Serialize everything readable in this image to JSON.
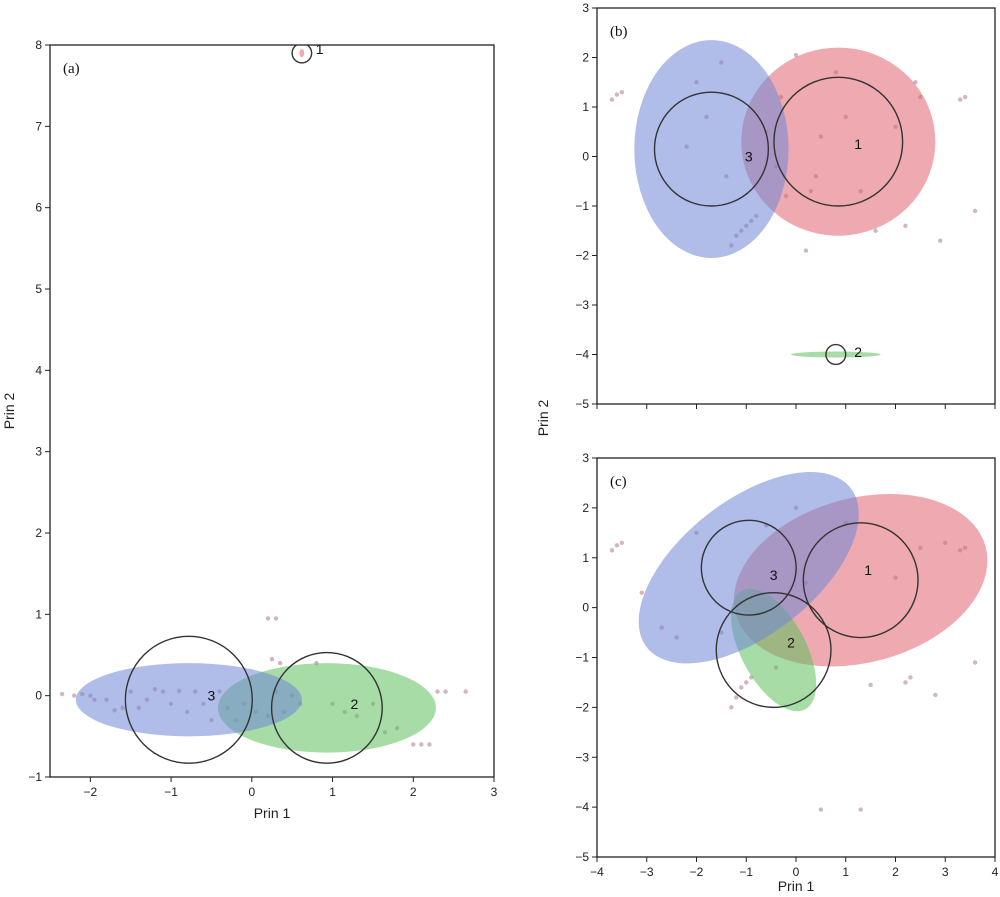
{
  "colors": {
    "cluster_red": "#e06470",
    "cluster_blue": "#6f86d6",
    "cluster_green": "#5fbf5f",
    "teal_overlap": "#4f9fb0",
    "outlier_gray": "#c9a9b2"
  },
  "chart_data": [
    {
      "id": "a",
      "type": "scatter",
      "panel_label": "(a)",
      "xlabel": "Prin 1",
      "ylabel": "Prin 2",
      "xlim": [
        -2.5,
        3
      ],
      "ylim": [
        -1,
        8
      ],
      "xticks": [
        -2,
        -1,
        0,
        1,
        2,
        3
      ],
      "yticks": [
        -1,
        0,
        1,
        2,
        3,
        4,
        5,
        6,
        7,
        8
      ],
      "clusters": [
        {
          "label": "1",
          "color": "cluster_red",
          "center": [
            0.62,
            7.9
          ],
          "ellipse": {
            "rx": 0.03,
            "ry": 0.05,
            "angle": 0
          },
          "circle_r": 0.12,
          "label_at": [
            0.84,
            7.95
          ]
        },
        {
          "label": "2",
          "color": "cluster_green",
          "center": [
            0.93,
            -0.15
          ],
          "ellipse": {
            "rx": 1.35,
            "ry": 0.55,
            "angle": 0
          },
          "circle_r": 0.68,
          "label_at": [
            1.27,
            -0.1
          ]
        },
        {
          "label": "3",
          "color": "cluster_blue",
          "center": [
            -0.78,
            -0.05
          ],
          "ellipse": {
            "rx": 1.4,
            "ry": 0.45,
            "angle": 0
          },
          "circle_r": 0.78,
          "label_at": [
            -0.5,
            0.0
          ]
        }
      ],
      "points": [
        [
          -2.35,
          0.02
        ],
        [
          -2.2,
          0.0
        ],
        [
          -2.1,
          0.02
        ],
        [
          -2.0,
          0.0
        ],
        [
          -1.95,
          -0.05
        ],
        [
          -1.8,
          -0.05
        ],
        [
          -1.7,
          -0.18
        ],
        [
          -1.6,
          -0.15
        ],
        [
          -1.5,
          0.05
        ],
        [
          -1.4,
          -0.15
        ],
        [
          -1.3,
          -0.05
        ],
        [
          -1.2,
          0.08
        ],
        [
          -1.1,
          0.05
        ],
        [
          -1.0,
          -0.1
        ],
        [
          -0.9,
          0.06
        ],
        [
          -0.8,
          -0.2
        ],
        [
          -0.7,
          0.05
        ],
        [
          -0.6,
          -0.1
        ],
        [
          -0.5,
          -0.3
        ],
        [
          -0.4,
          0.05
        ],
        [
          -0.3,
          -0.15
        ],
        [
          -0.2,
          -0.3
        ],
        [
          -0.1,
          -0.1
        ],
        [
          0.05,
          -0.2
        ],
        [
          0.2,
          -0.25
        ],
        [
          0.3,
          0.05
        ],
        [
          0.4,
          -0.2
        ],
        [
          0.5,
          0.0
        ],
        [
          0.6,
          -0.1
        ],
        [
          0.8,
          0.4
        ],
        [
          1.0,
          -0.1
        ],
        [
          1.15,
          -0.2
        ],
        [
          1.3,
          -0.25
        ],
        [
          1.5,
          -0.1
        ],
        [
          1.65,
          -0.45
        ],
        [
          1.8,
          -0.4
        ],
        [
          2.0,
          -0.6
        ],
        [
          2.1,
          -0.6
        ],
        [
          2.2,
          -0.6
        ],
        [
          2.3,
          0.05
        ],
        [
          2.4,
          0.05
        ],
        [
          2.65,
          0.05
        ],
        [
          0.2,
          0.95
        ],
        [
          0.3,
          0.95
        ],
        [
          0.25,
          0.45
        ],
        [
          0.35,
          0.4
        ]
      ],
      "grid": false
    },
    {
      "id": "b",
      "type": "scatter",
      "panel_label": "(b)",
      "xlabel": "",
      "ylabel": "Prin 2",
      "xlim": [
        -4,
        4
      ],
      "ylim": [
        -5,
        3
      ],
      "xticks": [
        -4,
        -3,
        -2,
        -1,
        0,
        1,
        2,
        3,
        4
      ],
      "yticks": [
        -5,
        -4,
        -3,
        -2,
        -1,
        0,
        1,
        2,
        3
      ],
      "show_xtick_labels": false,
      "clusters": [
        {
          "label": "1",
          "color": "cluster_red",
          "center": [
            0.85,
            0.3
          ],
          "ellipse": {
            "rx": 1.95,
            "ry": 1.9,
            "angle": 0
          },
          "circle_r": 1.3,
          "label_at": [
            1.25,
            0.25
          ]
        },
        {
          "label": "2",
          "color": "cluster_green",
          "center": [
            0.8,
            -4.0
          ],
          "ellipse": {
            "rx": 0.9,
            "ry": 0.06,
            "angle": 0
          },
          "circle_r": 0.2,
          "label_at": [
            1.25,
            -3.95
          ]
        },
        {
          "label": "3",
          "color": "cluster_blue",
          "center": [
            -1.7,
            0.15
          ],
          "ellipse": {
            "rx": 1.55,
            "ry": 2.2,
            "angle": 0
          },
          "circle_r": 1.15,
          "label_at": [
            -0.95,
            0.0
          ]
        }
      ],
      "points": [
        [
          -3.7,
          1.15
        ],
        [
          -3.6,
          1.25
        ],
        [
          -3.5,
          1.3
        ],
        [
          -2.2,
          0.2
        ],
        [
          -2.0,
          1.5
        ],
        [
          -1.8,
          0.8
        ],
        [
          -1.5,
          1.9
        ],
        [
          -1.4,
          -0.4
        ],
        [
          -1.3,
          -1.8
        ],
        [
          -1.2,
          -1.6
        ],
        [
          -1.1,
          -1.5
        ],
        [
          -1.0,
          -1.4
        ],
        [
          -0.9,
          -1.3
        ],
        [
          -0.8,
          -1.2
        ],
        [
          -0.6,
          0.5
        ],
        [
          -0.4,
          -0.2
        ],
        [
          -0.3,
          1.2
        ],
        [
          -0.2,
          -0.8
        ],
        [
          0.0,
          2.05
        ],
        [
          0.2,
          -1.9
        ],
        [
          0.3,
          -0.7
        ],
        [
          0.5,
          0.4
        ],
        [
          0.8,
          1.7
        ],
        [
          1.0,
          0.8
        ],
        [
          1.3,
          -0.7
        ],
        [
          1.6,
          -1.5
        ],
        [
          2.0,
          0.6
        ],
        [
          2.2,
          -1.4
        ],
        [
          2.5,
          1.2
        ],
        [
          2.9,
          -1.7
        ],
        [
          3.3,
          1.15
        ],
        [
          3.4,
          1.2
        ],
        [
          3.6,
          -1.1
        ],
        [
          2.4,
          1.5
        ],
        [
          0.4,
          -0.4
        ]
      ],
      "grid": false
    },
    {
      "id": "c",
      "type": "scatter",
      "panel_label": "(c)",
      "xlabel": "Prin 1",
      "ylabel": "",
      "xlim": [
        -4,
        4
      ],
      "ylim": [
        -5,
        3
      ],
      "xticks": [
        -4,
        -3,
        -2,
        -1,
        0,
        1,
        2,
        3,
        4
      ],
      "yticks": [
        -5,
        -4,
        -3,
        -2,
        -1,
        0,
        1,
        2,
        3
      ],
      "clusters": [
        {
          "label": "1",
          "color": "cluster_red",
          "center": [
            1.3,
            0.55
          ],
          "ellipse": {
            "rx": 2.6,
            "ry": 1.65,
            "angle": -15
          },
          "circle_r": 1.15,
          "label_at": [
            1.45,
            0.75
          ]
        },
        {
          "label": "2",
          "color": "cluster_green",
          "center": [
            -0.45,
            -0.85
          ],
          "ellipse": {
            "rx": 1.35,
            "ry": 0.65,
            "angle": 62
          },
          "circle_r": 1.15,
          "label_at": [
            -0.1,
            -0.7
          ]
        },
        {
          "label": "3",
          "color": "cluster_blue",
          "center": [
            -0.95,
            0.8
          ],
          "ellipse": {
            "rx": 2.6,
            "ry": 1.35,
            "angle": -38
          },
          "circle_r": 0.95,
          "label_at": [
            -0.45,
            0.65
          ]
        }
      ],
      "points": [
        [
          -3.7,
          1.15
        ],
        [
          -3.6,
          1.25
        ],
        [
          -3.5,
          1.3
        ],
        [
          -3.1,
          0.3
        ],
        [
          -2.7,
          -0.4
        ],
        [
          -2.4,
          -0.6
        ],
        [
          -2.0,
          1.5
        ],
        [
          -1.5,
          -0.5
        ],
        [
          -1.3,
          -2.0
        ],
        [
          -1.2,
          -1.8
        ],
        [
          -1.1,
          -1.6
        ],
        [
          -1.0,
          -1.5
        ],
        [
          -0.9,
          -1.4
        ],
        [
          -0.6,
          1.65
        ],
        [
          -0.4,
          -1.2
        ],
        [
          0.0,
          2.0
        ],
        [
          0.2,
          0.5
        ],
        [
          0.5,
          -4.05
        ],
        [
          1.0,
          1.7
        ],
        [
          1.3,
          -4.05
        ],
        [
          1.5,
          -1.55
        ],
        [
          2.0,
          0.6
        ],
        [
          2.3,
          -1.4
        ],
        [
          2.5,
          1.2
        ],
        [
          2.8,
          -1.75
        ],
        [
          3.0,
          1.3
        ],
        [
          3.3,
          1.15
        ],
        [
          3.4,
          1.2
        ],
        [
          3.6,
          -1.1
        ],
        [
          2.2,
          -1.5
        ]
      ],
      "grid": false
    }
  ]
}
